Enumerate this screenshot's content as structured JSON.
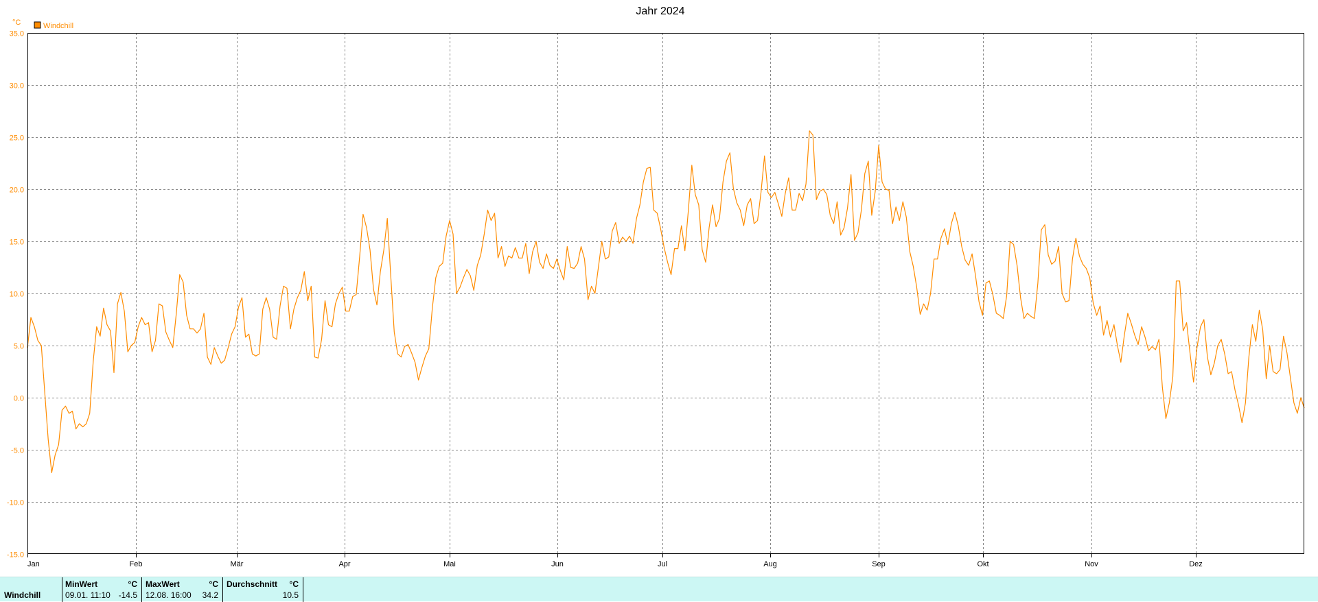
{
  "chart_data": {
    "type": "line",
    "title": "Jahr 2024",
    "ylabel": "°C",
    "ylim": [
      -15,
      35
    ],
    "yticks": [
      "35.0",
      "30.0",
      "25.0",
      "20.0",
      "15.0",
      "10.0",
      "5.0",
      "0.0",
      "-5.0",
      "-10.0",
      "-15.0"
    ],
    "ytick_values": [
      35,
      30,
      25,
      20,
      15,
      10,
      5,
      0,
      -5,
      -10,
      -15
    ],
    "xticks": [
      "Jan",
      "Feb",
      "Mär",
      "Apr",
      "Mai",
      "Jun",
      "Jul",
      "Aug",
      "Sep",
      "Okt",
      "Nov",
      "Dez"
    ],
    "xtick_days": [
      0,
      31,
      60,
      91,
      121,
      152,
      182,
      213,
      244,
      274,
      305,
      335
    ],
    "x_domain_days": [
      0,
      366
    ],
    "grid": true,
    "legend": {
      "placement": "top-left",
      "entries": [
        {
          "name": "Windchill",
          "color": "#ff8c00"
        }
      ]
    },
    "series": [
      {
        "name": "Windchill",
        "color": "#ff8c00",
        "values": [
          4.8,
          7.7,
          6.8,
          5.5,
          5.0,
          0.5,
          -4.0,
          -7.2,
          -5.5,
          -4.5,
          -1.2,
          -0.8,
          -1.5,
          -1.3,
          -3.0,
          -2.5,
          -2.8,
          -2.5,
          -1.5,
          3.5,
          6.8,
          5.9,
          8.6,
          7.0,
          6.4,
          2.4,
          9.0,
          10.1,
          8.3,
          4.4,
          5.0,
          5.3,
          6.8,
          7.7,
          7.0,
          7.2,
          4.4,
          5.5,
          9.0,
          8.8,
          6.3,
          5.5,
          4.8,
          8.0,
          11.8,
          11.1,
          7.9,
          6.6,
          6.6,
          6.2,
          6.6,
          8.1,
          3.9,
          3.2,
          4.8,
          4.0,
          3.3,
          3.6,
          4.8,
          6.1,
          6.8,
          8.7,
          9.6,
          5.8,
          6.1,
          4.2,
          4.0,
          4.2,
          8.5,
          9.6,
          8.5,
          5.8,
          5.6,
          8.8,
          10.7,
          10.5,
          6.6,
          8.5,
          9.6,
          10.3,
          12.1,
          9.3,
          10.7,
          3.9,
          3.8,
          5.6,
          9.3,
          7.0,
          6.8,
          9.0,
          10.0,
          10.6,
          8.3,
          8.3,
          9.7,
          9.9,
          13.5,
          17.6,
          16.3,
          14.2,
          10.4,
          8.9,
          12.1,
          14.2,
          17.2,
          11.6,
          6.3,
          4.2,
          3.9,
          4.9,
          5.1,
          4.3,
          3.4,
          1.7,
          2.9,
          4.0,
          4.7,
          8.6,
          11.5,
          12.6,
          12.9,
          15.5,
          17.0,
          15.7,
          10.0,
          10.6,
          11.5,
          12.3,
          11.7,
          10.3,
          12.7,
          13.7,
          15.7,
          18.0,
          17.0,
          17.7,
          13.4,
          14.5,
          12.6,
          13.6,
          13.4,
          14.4,
          13.4,
          13.4,
          14.8,
          11.9,
          14.0,
          15.0,
          13.0,
          12.4,
          13.8,
          12.7,
          12.4,
          13.3,
          12.2,
          11.3,
          14.5,
          12.5,
          12.4,
          12.9,
          14.5,
          13.3,
          9.4,
          10.7,
          10.0,
          12.5,
          15.0,
          13.3,
          13.5,
          16.0,
          16.8,
          14.8,
          15.4,
          15.0,
          15.5,
          14.8,
          17.2,
          18.5,
          20.7,
          22.0,
          22.1,
          18.0,
          17.7,
          16.2,
          14.4,
          13.0,
          11.8,
          14.3,
          14.3,
          16.5,
          14.1,
          18.0,
          22.3,
          19.5,
          18.5,
          14.2,
          13.0,
          16.3,
          18.5,
          16.4,
          17.2,
          20.7,
          22.7,
          23.5,
          20.1,
          18.7,
          18.0,
          16.5,
          18.5,
          19.1,
          16.7,
          17.0,
          19.7,
          23.2,
          19.7,
          19.2,
          19.7,
          18.6,
          17.4,
          19.6,
          21.1,
          18.0,
          18.0,
          19.6,
          18.9,
          20.5,
          25.6,
          25.2,
          19.0,
          19.8,
          20.0,
          19.5,
          17.5,
          16.7,
          18.8,
          15.6,
          16.3,
          18.2,
          21.4,
          15.1,
          15.8,
          18.0,
          21.5,
          22.7,
          17.5,
          19.8,
          24.2,
          20.7,
          20.0,
          19.9,
          16.7,
          18.3,
          17.0,
          18.8,
          17.3,
          14.0,
          12.6,
          10.6,
          8.0,
          9.0,
          8.4,
          10.0,
          13.3,
          13.3,
          15.3,
          16.2,
          14.7,
          16.7,
          17.8,
          16.5,
          14.5,
          13.2,
          12.7,
          13.8,
          11.7,
          9.2,
          7.9,
          11.0,
          11.2,
          9.9,
          8.1,
          7.9,
          7.6,
          9.8,
          15.0,
          14.7,
          12.7,
          9.6,
          7.6,
          8.1,
          7.8,
          7.6,
          11.0,
          16.1,
          16.6,
          13.7,
          12.8,
          13.1,
          14.5,
          10.0,
          9.2,
          9.3,
          13.3,
          15.3,
          13.6,
          12.8,
          12.4,
          11.5,
          9.1,
          7.9,
          8.8,
          6.0,
          7.4,
          5.8,
          7.0,
          5.0,
          3.4,
          6.0,
          8.1,
          7.1,
          6.0,
          5.1,
          6.8,
          5.8,
          4.5,
          4.9,
          4.6,
          5.6,
          1.0,
          -2.0,
          -0.5,
          2.0,
          11.2,
          11.2,
          6.4,
          7.2,
          4.2,
          1.5,
          4.8,
          6.8,
          7.5,
          3.9,
          2.2,
          3.3,
          5.0,
          5.6,
          4.2,
          2.3,
          2.5,
          0.7,
          -0.7,
          -2.4,
          -0.5,
          3.9,
          7.0,
          5.4,
          8.4,
          6.5,
          1.8,
          5.0,
          2.5,
          2.3,
          2.7,
          5.9,
          4.3,
          1.9,
          -0.5,
          -1.5,
          0.0,
          -1.0
        ]
      }
    ]
  },
  "stats": {
    "row_label": "Windchill",
    "min": {
      "header": "MinWert",
      "unit": "°C",
      "datetime": "09.01.  11:10",
      "value": "-14.5"
    },
    "max": {
      "header": "MaxWert",
      "unit": "°C",
      "datetime": "12.08.  16:00",
      "value": "34.2"
    },
    "avg": {
      "header": "Durchschnitt",
      "unit": "°C",
      "value": "10.5"
    }
  }
}
